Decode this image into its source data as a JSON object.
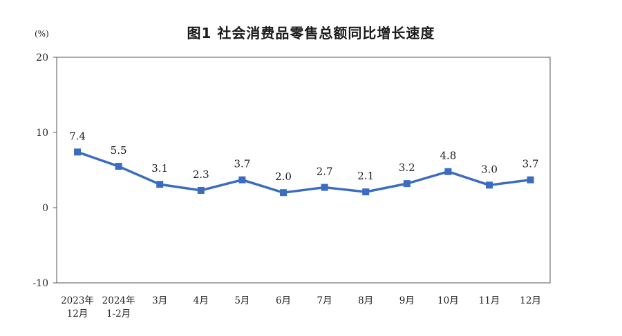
{
  "chart_data": {
    "type": "line",
    "title": "图1 社会消费品零售总额同比增长速度",
    "ylabel": "(%)",
    "xlabel": "",
    "ylim": [
      -10,
      20
    ],
    "yticks": [
      "-10",
      "0",
      "10",
      "20"
    ],
    "categories": [
      [
        "2023年",
        "12月"
      ],
      [
        "2024年",
        "1-2月"
      ],
      [
        "3月"
      ],
      [
        "4月"
      ],
      [
        "5月"
      ],
      [
        "6月"
      ],
      [
        "7月"
      ],
      [
        "8月"
      ],
      [
        "9月"
      ],
      [
        "10月"
      ],
      [
        "11月"
      ],
      [
        "12月"
      ]
    ],
    "values": [
      7.4,
      5.5,
      3.1,
      2.3,
      3.7,
      2.0,
      2.7,
      2.1,
      3.2,
      4.8,
      3.0,
      3.7
    ],
    "data_labels": [
      "7.4",
      "5.5",
      "3.1",
      "2.3",
      "3.7",
      "2.0",
      "2.7",
      "2.1",
      "3.2",
      "4.8",
      "3.0",
      "3.7"
    ],
    "series_color": "#3a6cc0",
    "grid": false,
    "legend": "none"
  }
}
